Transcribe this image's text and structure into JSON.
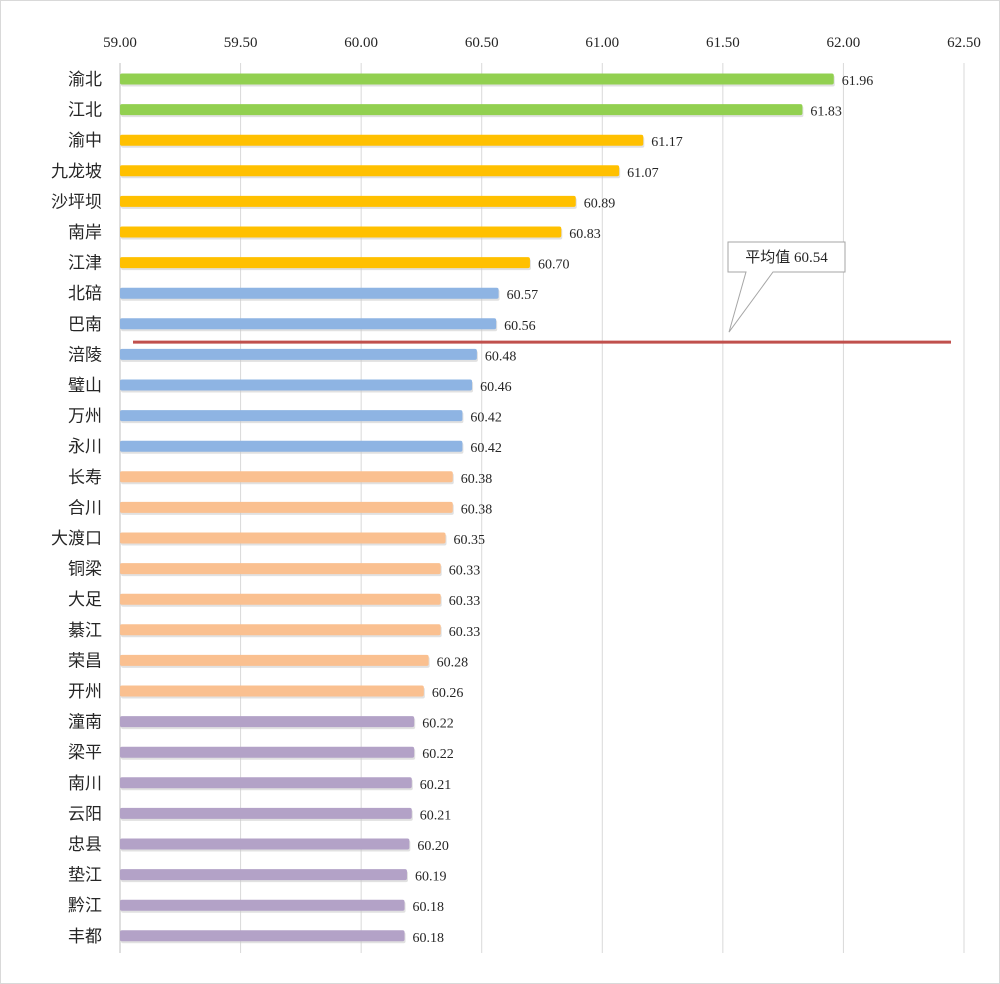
{
  "chart_data": {
    "type": "bar",
    "orientation": "horizontal",
    "xlim": [
      59.0,
      62.5
    ],
    "x_ticks": [
      "59.00",
      "59.50",
      "60.00",
      "60.50",
      "61.00",
      "61.50",
      "62.00",
      "62.50"
    ],
    "tick_axis_position": "top",
    "grid": "vertical",
    "categories": [
      "渝北",
      "江北",
      "渝中",
      "九龙坡",
      "沙坪坝",
      "南岸",
      "江津",
      "北碚",
      "巴南",
      "涪陵",
      "璧山",
      "万州",
      "永川",
      "长寿",
      "合川",
      "大渡口",
      "铜梁",
      "大足",
      "綦江",
      "荣昌",
      "开州",
      "潼南",
      "梁平",
      "南川",
      "云阳",
      "忠县",
      "垫江",
      "黔江",
      "丰都"
    ],
    "values": [
      61.96,
      61.83,
      61.17,
      61.07,
      60.89,
      60.83,
      60.7,
      60.57,
      60.56,
      60.48,
      60.46,
      60.42,
      60.42,
      60.38,
      60.38,
      60.35,
      60.33,
      60.33,
      60.33,
      60.28,
      60.26,
      60.22,
      60.22,
      60.21,
      60.21,
      60.2,
      60.19,
      60.18,
      60.18
    ],
    "value_labels": [
      "61.96",
      "61.83",
      "61.17",
      "61.07",
      "60.89",
      "60.83",
      "60.70",
      "60.57",
      "60.56",
      "60.48",
      "60.46",
      "60.42",
      "60.42",
      "60.38",
      "60.38",
      "60.35",
      "60.33",
      "60.33",
      "60.33",
      "60.28",
      "60.26",
      "60.22",
      "60.22",
      "60.21",
      "60.21",
      "60.20",
      "60.19",
      "60.18",
      "60.18"
    ],
    "bar_colors": [
      "#92d050",
      "#92d050",
      "#ffc000",
      "#ffc000",
      "#ffc000",
      "#ffc000",
      "#ffc000",
      "#8eb4e3",
      "#8eb4e3",
      "#8eb4e3",
      "#8eb4e3",
      "#8eb4e3",
      "#8eb4e3",
      "#fac090",
      "#fac090",
      "#fac090",
      "#fac090",
      "#fac090",
      "#fac090",
      "#fac090",
      "#fac090",
      "#b3a2c7",
      "#b3a2c7",
      "#b3a2c7",
      "#b3a2c7",
      "#b3a2c7",
      "#b3a2c7",
      "#b3a2c7",
      "#b3a2c7"
    ],
    "average": {
      "value": 60.54,
      "label": "平均值 60.54",
      "line_color": "#c0504d"
    }
  }
}
